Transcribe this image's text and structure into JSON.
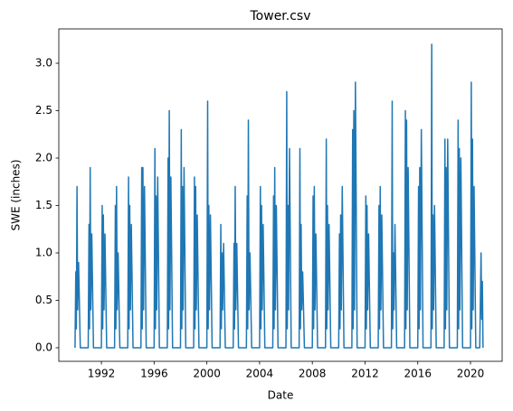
{
  "chart_data": {
    "type": "line",
    "title": "Tower.csv",
    "xlabel": "Date",
    "ylabel": "SWE (inches)",
    "x": [
      1990,
      1990.06,
      1990.1,
      1990.15,
      1990.2,
      1990.27,
      1990.4,
      1991,
      1991.06,
      1991.1,
      1991.15,
      1991.2,
      1991.27,
      1991.4,
      1992,
      1992.06,
      1992.1,
      1992.15,
      1992.2,
      1992.27,
      1992.4,
      1993,
      1993.06,
      1993.1,
      1993.15,
      1993.2,
      1993.27,
      1993.4,
      1994,
      1994.06,
      1994.1,
      1994.15,
      1994.2,
      1994.27,
      1994.4,
      1995,
      1995.06,
      1995.1,
      1995.15,
      1995.2,
      1995.27,
      1995.4,
      1996,
      1996.06,
      1996.1,
      1996.15,
      1996.2,
      1996.27,
      1996.4,
      1997,
      1997.06,
      1997.1,
      1997.15,
      1997.2,
      1997.27,
      1997.4,
      1998,
      1998.06,
      1998.1,
      1998.15,
      1998.2,
      1998.27,
      1998.4,
      1999,
      1999.06,
      1999.1,
      1999.15,
      1999.2,
      1999.27,
      1999.4,
      2000,
      2000.06,
      2000.1,
      2000.15,
      2000.2,
      2000.27,
      2000.4,
      2001,
      2001.06,
      2001.1,
      2001.15,
      2001.2,
      2001.27,
      2001.4,
      2002,
      2002.06,
      2002.1,
      2002.15,
      2002.2,
      2002.27,
      2002.4,
      2003,
      2003.06,
      2003.1,
      2003.15,
      2003.2,
      2003.27,
      2003.4,
      2004,
      2004.06,
      2004.1,
      2004.15,
      2004.2,
      2004.27,
      2004.4,
      2005,
      2005.06,
      2005.1,
      2005.15,
      2005.2,
      2005.27,
      2005.4,
      2006,
      2006.06,
      2006.1,
      2006.15,
      2006.2,
      2006.27,
      2006.4,
      2007,
      2007.06,
      2007.1,
      2007.15,
      2007.2,
      2007.27,
      2007.4,
      2008,
      2008.06,
      2008.1,
      2008.15,
      2008.2,
      2008.27,
      2008.4,
      2009,
      2009.06,
      2009.1,
      2009.15,
      2009.2,
      2009.27,
      2009.4,
      2010,
      2010.06,
      2010.1,
      2010.15,
      2010.2,
      2010.27,
      2010.4,
      2011,
      2011.06,
      2011.1,
      2011.15,
      2011.2,
      2011.27,
      2011.4,
      2012,
      2012.06,
      2012.1,
      2012.15,
      2012.2,
      2012.27,
      2012.4,
      2013,
      2013.06,
      2013.1,
      2013.15,
      2013.2,
      2013.27,
      2013.4,
      2014,
      2014.06,
      2014.1,
      2014.15,
      2014.2,
      2014.27,
      2014.4,
      2015,
      2015.06,
      2015.1,
      2015.15,
      2015.2,
      2015.27,
      2015.4,
      2016,
      2016.06,
      2016.1,
      2016.15,
      2016.2,
      2016.27,
      2016.4,
      2017,
      2017.06,
      2017.1,
      2017.15,
      2017.2,
      2017.27,
      2017.4,
      2018,
      2018.06,
      2018.1,
      2018.15,
      2018.2,
      2018.27,
      2018.4,
      2019,
      2019.06,
      2019.1,
      2019.15,
      2019.2,
      2019.27,
      2019.4,
      2020,
      2020.06,
      2020.1,
      2020.15,
      2020.2,
      2020.27,
      2020.4,
      2020.7,
      2020.8,
      2020.85,
      2020.9,
      2020.95
    ],
    "series": [
      {
        "name": "SWE",
        "color": "#1f77b4",
        "values": [
          0,
          0.8,
          0.2,
          1.7,
          0.4,
          0.9,
          0,
          0,
          1.3,
          0.2,
          1.9,
          0.4,
          1.2,
          0,
          0,
          1.5,
          0.2,
          1.4,
          0.4,
          1.2,
          0,
          0,
          1.5,
          0.2,
          1.7,
          0.4,
          1.0,
          0,
          0,
          1.8,
          0.2,
          1.5,
          0.4,
          1.3,
          0,
          0,
          1.9,
          0.2,
          1.9,
          0.4,
          1.7,
          0,
          0,
          2.1,
          0.2,
          1.6,
          0.4,
          1.8,
          0,
          0,
          2.0,
          0.2,
          2.5,
          0.4,
          1.8,
          0,
          0,
          2.3,
          0.2,
          1.7,
          0.4,
          1.9,
          0,
          0,
          1.8,
          0.2,
          1.7,
          0.4,
          1.4,
          0,
          0,
          2.6,
          0.2,
          1.5,
          0.4,
          1.4,
          0,
          0,
          1.3,
          0.2,
          1.0,
          0.4,
          1.1,
          0,
          0,
          1.1,
          0.2,
          1.7,
          0.4,
          1.1,
          0,
          0,
          1.6,
          0.2,
          2.4,
          0.4,
          1.0,
          0,
          0,
          1.7,
          0.2,
          1.5,
          0.4,
          1.3,
          0,
          0,
          1.6,
          0.2,
          1.9,
          0.4,
          1.5,
          0,
          0,
          2.7,
          0.2,
          1.5,
          0.4,
          2.1,
          0,
          0,
          2.1,
          0.2,
          1.3,
          0.4,
          0.8,
          0,
          0,
          1.6,
          0.2,
          1.7,
          0.4,
          1.2,
          0,
          0,
          2.2,
          0.2,
          1.5,
          0.4,
          1.3,
          0,
          0,
          1.2,
          0.2,
          1.4,
          0.4,
          1.7,
          0,
          0,
          2.3,
          0.2,
          2.5,
          0.4,
          2.8,
          0,
          0,
          1.6,
          0.2,
          1.5,
          0.4,
          1.2,
          0,
          0,
          1.5,
          0.2,
          1.7,
          0.4,
          1.4,
          0,
          0,
          2.6,
          0.2,
          1.0,
          0.4,
          1.3,
          0,
          0,
          2.5,
          0.2,
          2.4,
          0.4,
          1.9,
          0,
          0,
          1.7,
          0.2,
          1.9,
          0.4,
          2.3,
          0,
          0,
          3.2,
          0.2,
          1.4,
          0.4,
          1.5,
          0,
          0,
          2.2,
          0.2,
          1.9,
          0.4,
          2.2,
          0,
          0,
          2.4,
          0.2,
          2.1,
          0.4,
          2.0,
          0,
          0,
          2.8,
          0.2,
          2.2,
          0.4,
          1.7,
          0,
          0,
          1.0,
          0.3,
          0.7,
          0
        ]
      }
    ],
    "xlim": [
      1988.77,
      2022.4
    ],
    "xticks": [
      1992,
      1996,
      2000,
      2004,
      2008,
      2012,
      2016,
      2020
    ],
    "ylim": [
      -0.143,
      3.362
    ],
    "yticks": [
      {
        "value": 0,
        "label": "0.0"
      },
      {
        "value": 0.5,
        "label": "0.5"
      },
      {
        "value": 1,
        "label": "1.0"
      },
      {
        "value": 1.5,
        "label": "1.5"
      },
      {
        "value": 2,
        "label": "2.0"
      },
      {
        "value": 2.5,
        "label": "2.5"
      },
      {
        "value": 3,
        "label": "3.0"
      }
    ],
    "grid": false
  }
}
